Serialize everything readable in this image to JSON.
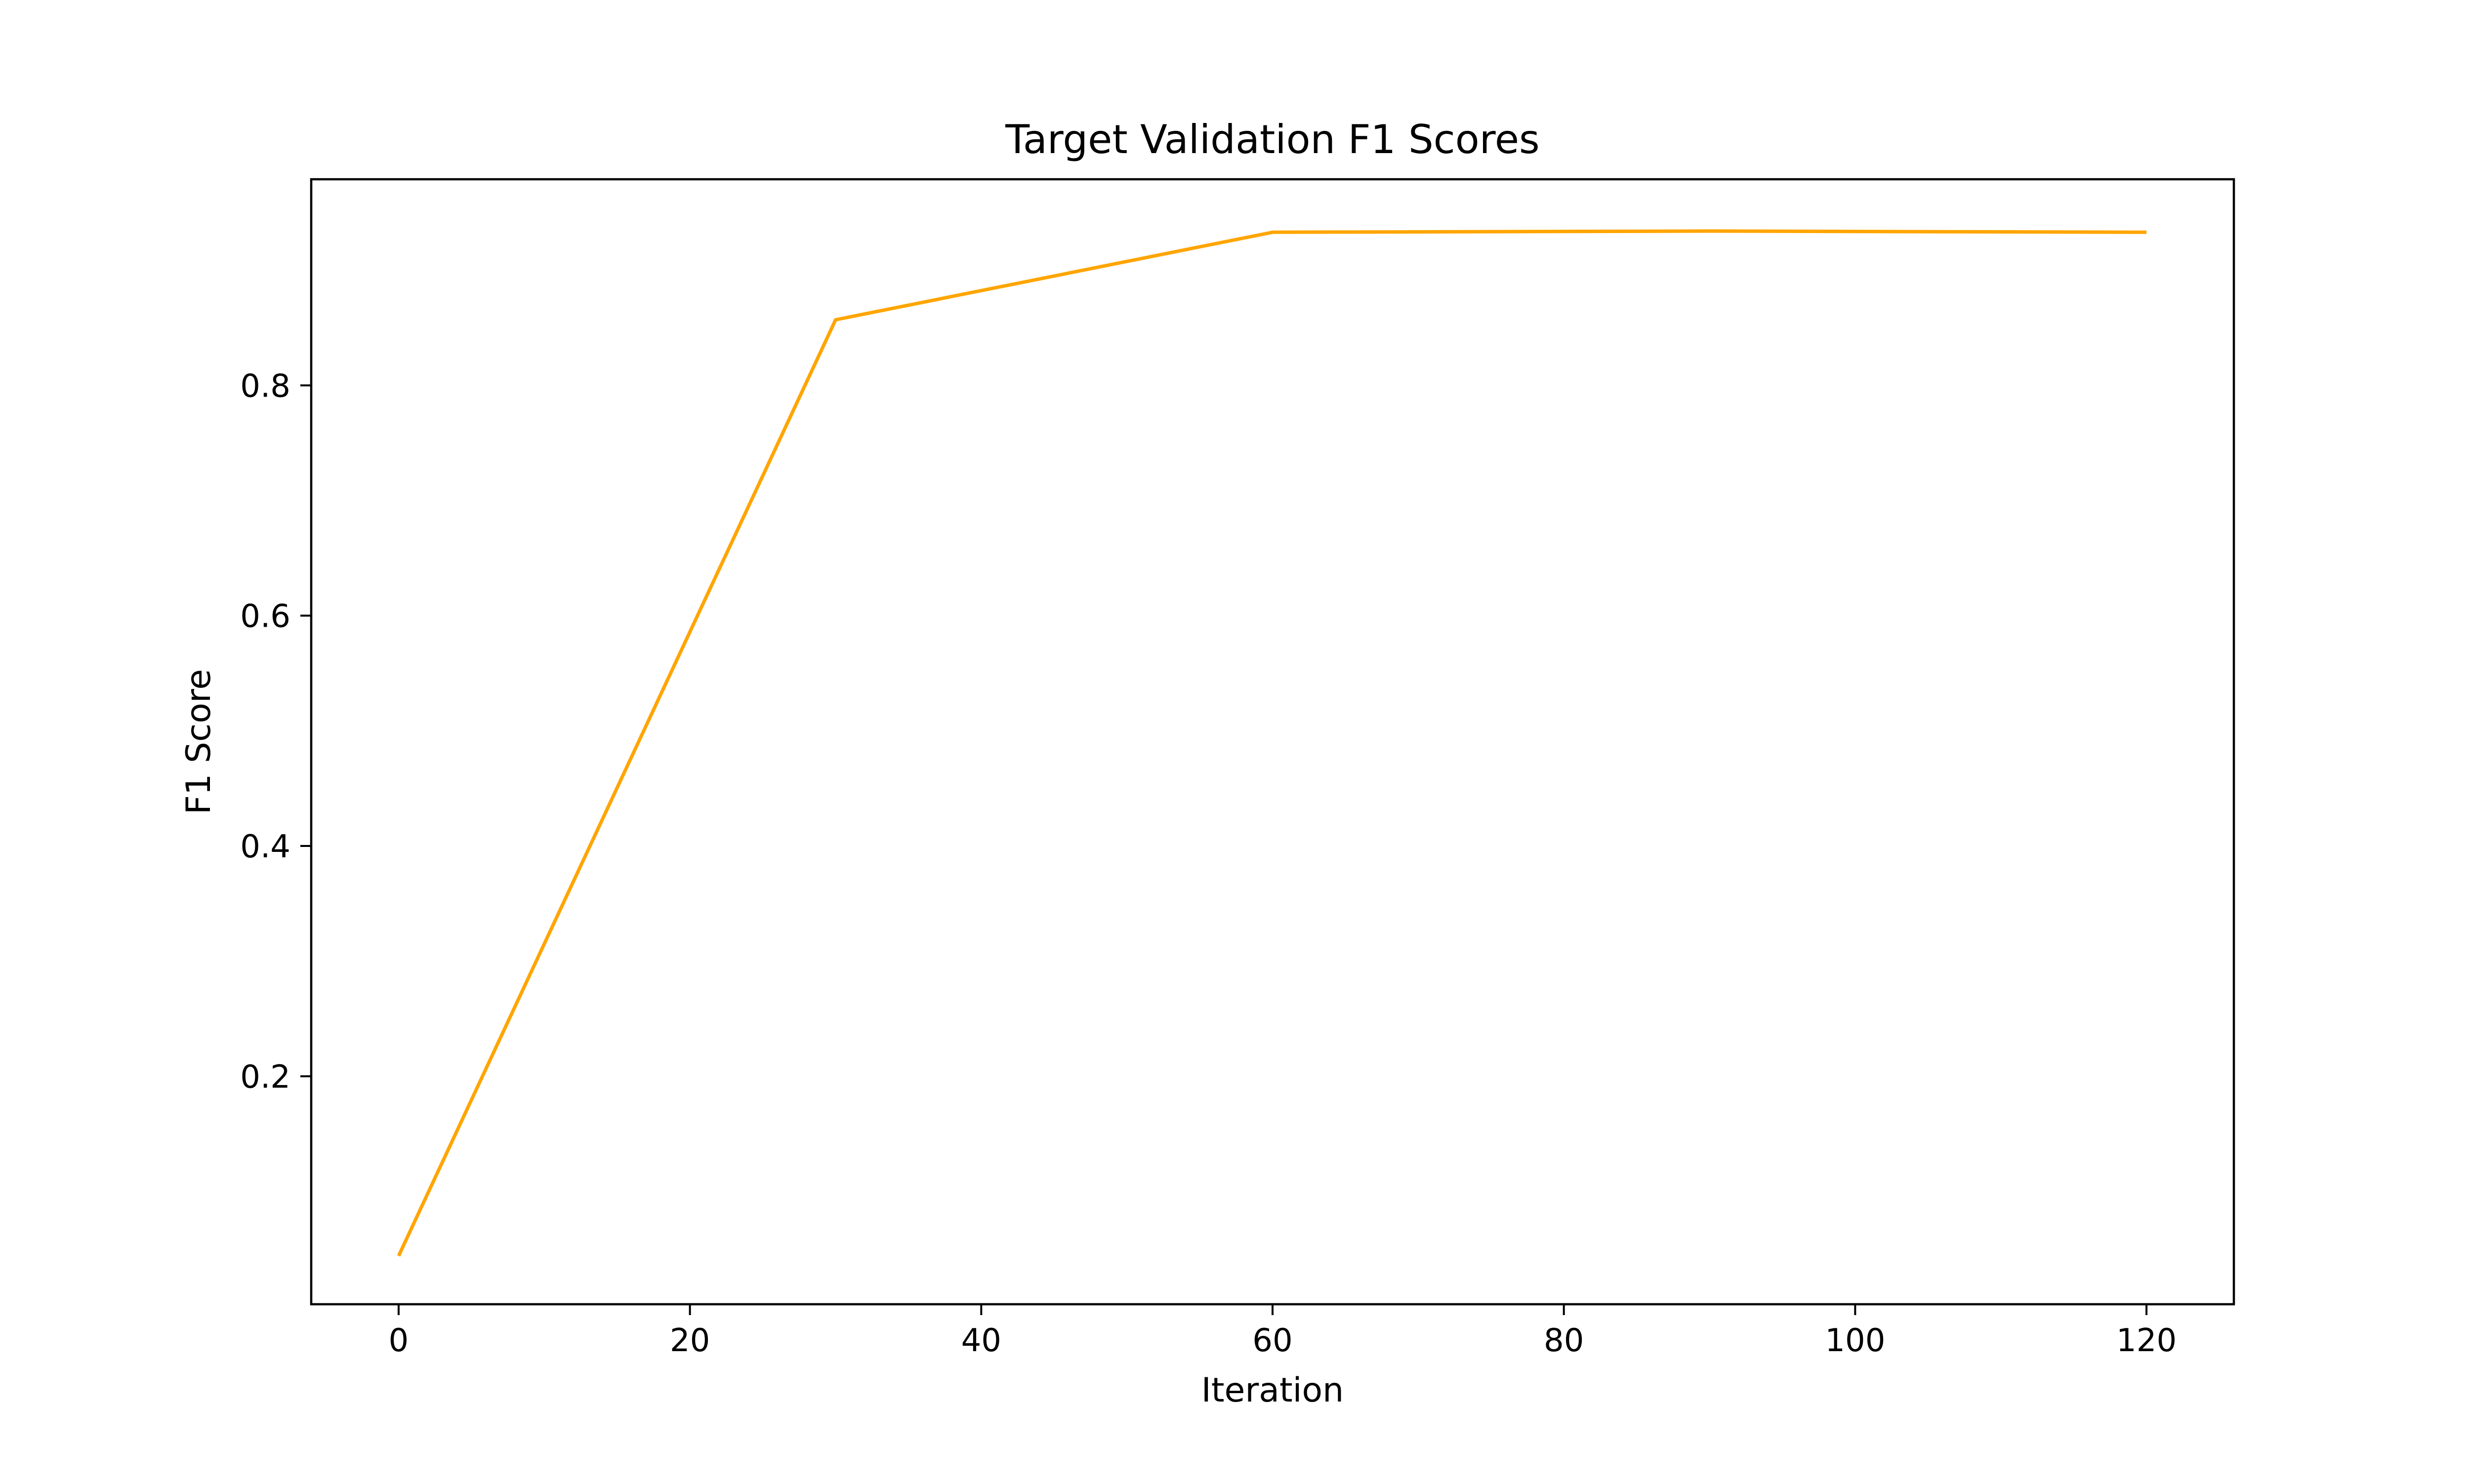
{
  "chart_data": {
    "type": "line",
    "title": "Target Validation F1 Scores",
    "xlabel": "Iteration",
    "ylabel": "F1 Score",
    "xlim": [
      -6,
      126
    ],
    "ylim": [
      0.002,
      0.979
    ],
    "x_ticks": [
      0,
      20,
      40,
      60,
      80,
      100,
      120
    ],
    "y_ticks": [
      0.2,
      0.4,
      0.6,
      0.8
    ],
    "x_tick_labels": [
      "0",
      "20",
      "40",
      "60",
      "80",
      "100",
      "120"
    ],
    "y_tick_labels": [
      "0.2",
      "0.4",
      "0.6",
      "0.8"
    ],
    "grid": false,
    "series": [
      {
        "color": "#FFA500",
        "x": [
          0,
          30,
          60,
          90,
          120
        ],
        "y": [
          0.044,
          0.857,
          0.933,
          0.934,
          0.933
        ]
      }
    ]
  }
}
